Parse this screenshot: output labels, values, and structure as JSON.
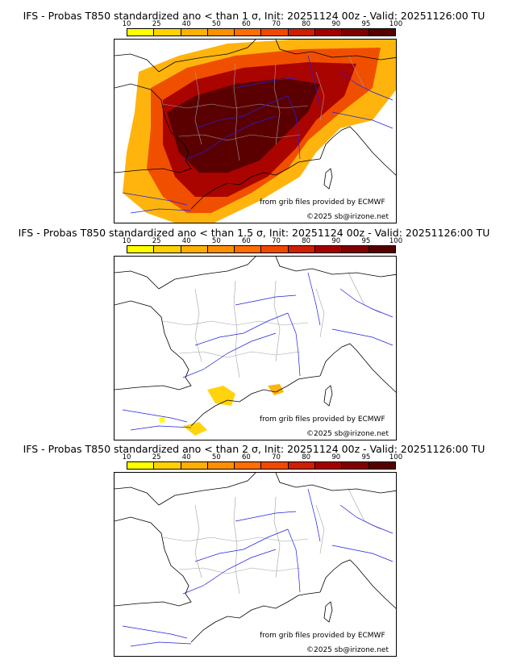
{
  "colors": {
    "scale": [
      "#ffff00",
      "#ffd200",
      "#ffb000",
      "#ff9000",
      "#ff6e00",
      "#f04a00",
      "#cc2000",
      "#a50000",
      "#800000",
      "#560000"
    ],
    "coast": "#000000",
    "rivers": "#2020e0",
    "borders": "#a0a0a0"
  },
  "legend": {
    "ticks": [
      "10",
      "25",
      "40",
      "50",
      "60",
      "70",
      "80",
      "90",
      "95",
      "100"
    ]
  },
  "panels": [
    {
      "title": "IFS - Probas T850  standardized ano < than 1 σ, Init: 20251124 00z - Valid: 20251126:00 TU",
      "credit_grib": "from grib files provided by ECMWF",
      "credit_copy": "©2025 sb@irizone.net",
      "coverage": "widespread"
    },
    {
      "title": "IFS - Probas T850  standardized ano < than 1.5 σ, Init: 20251124 00z - Valid: 20251126:00 TU",
      "credit_grib": "from grib files provided by ECMWF",
      "credit_copy": "©2025 sb@irizone.net",
      "coverage": "patchy"
    },
    {
      "title": "IFS - Probas T850  standardized ano < than 2 σ, Init: 20251124 00z - Valid: 20251126:00 TU",
      "credit_grib": "from grib files provided by ECMWF",
      "credit_copy": "©2025 sb@irizone.net",
      "coverage": "none"
    }
  ]
}
